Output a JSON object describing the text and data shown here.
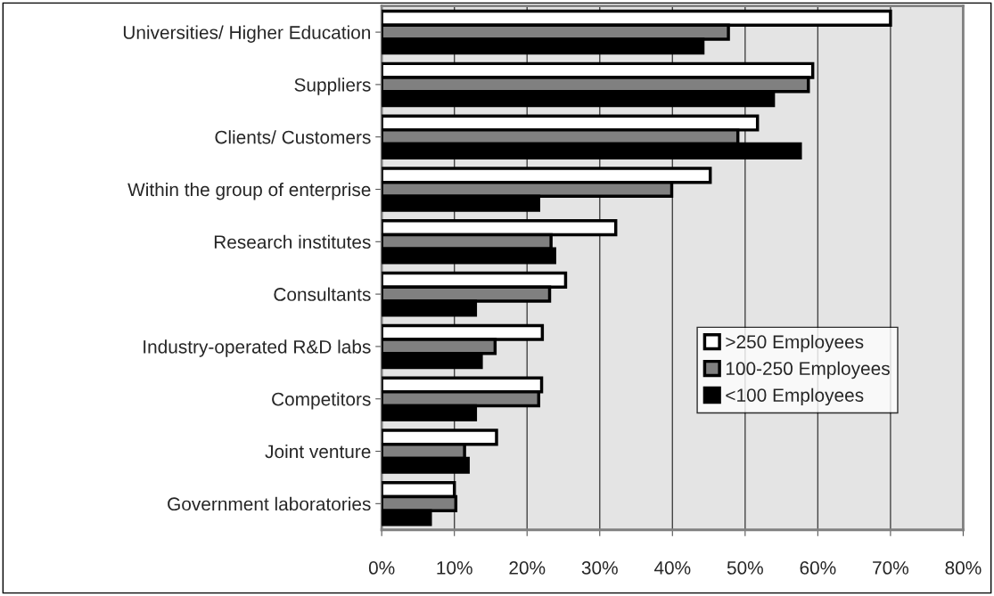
{
  "chart_data": {
    "type": "bar",
    "orientation": "horizontal",
    "categories": [
      "Universities/ Higher Education",
      "Suppliers",
      "Clients/ Customers",
      "Within the group of enterprise",
      "Research institutes",
      "Consultants",
      "Industry-operated R&D labs",
      "Competitors",
      "Joint venture",
      "Government laboratories"
    ],
    "series": [
      {
        "name": ">250 Employees",
        "color": "#ffffff",
        "values": [
          70,
          59.3,
          51.7,
          45.2,
          32.2,
          25.3,
          22.1,
          22.0,
          15.8,
          10.0
        ]
      },
      {
        "name": "100-250 Employees",
        "color": "#808080",
        "values": [
          47.7,
          58.7,
          49.0,
          39.9,
          23.3,
          23.1,
          15.6,
          21.6,
          11.4,
          10.2
        ]
      },
      {
        "name": "<100 Employees",
        "color": "#000000",
        "values": [
          44.2,
          53.9,
          57.6,
          21.6,
          23.8,
          12.9,
          13.7,
          12.9,
          11.9,
          6.7
        ]
      }
    ],
    "xlim": [
      0,
      80
    ],
    "xticks": [
      {
        "value": 0,
        "label": "0%"
      },
      {
        "value": 10,
        "label": "10%"
      },
      {
        "value": 20,
        "label": "20%"
      },
      {
        "value": 30,
        "label": "30%"
      },
      {
        "value": 40,
        "label": "40%"
      },
      {
        "value": 50,
        "label": "50%"
      },
      {
        "value": 60,
        "label": "60%"
      },
      {
        "value": 70,
        "label": "70%"
      },
      {
        "value": 80,
        "label": "80%"
      }
    ],
    "grid": "x",
    "legend": "center right"
  }
}
